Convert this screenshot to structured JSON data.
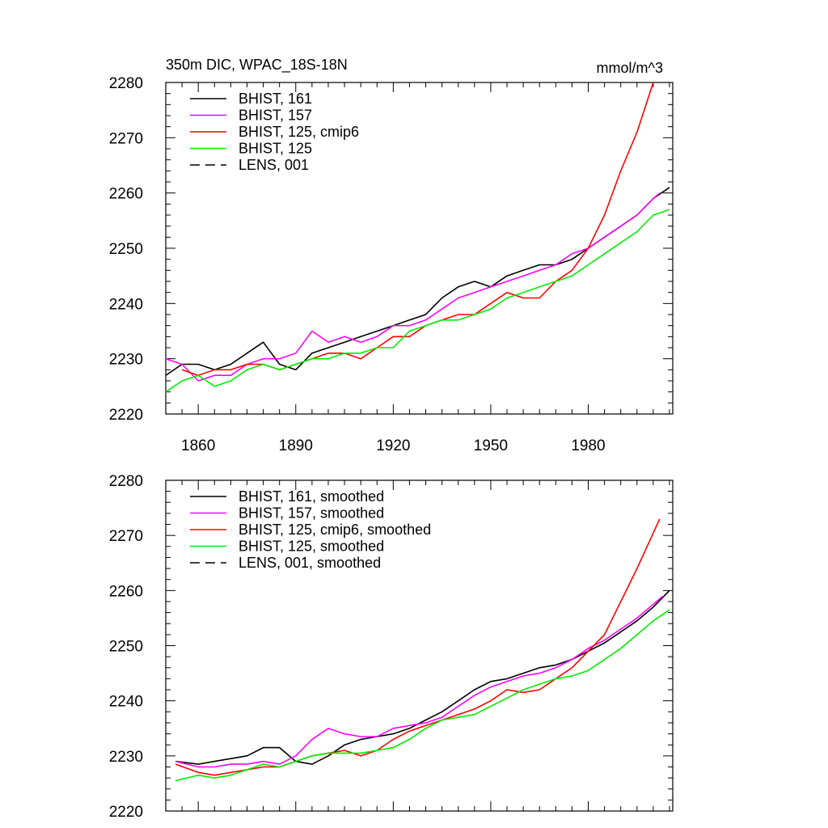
{
  "chart_data": [
    {
      "type": "line",
      "title": "350m DIC, WPAC_18S-18N",
      "units": "mmol/m^3",
      "xlim": [
        1850,
        2006
      ],
      "ylim": [
        2220,
        2280
      ],
      "xticks": [
        1860,
        1890,
        1920,
        1950,
        1980
      ],
      "yticks": [
        2220,
        2230,
        2240,
        2250,
        2260,
        2270,
        2280
      ],
      "show_xtick_labels": true,
      "grid": false,
      "legend_position": "top-left",
      "legend": [
        {
          "label": "BHIST, 161",
          "color": "#000000",
          "dash": "solid"
        },
        {
          "label": "BHIST, 157",
          "color": "#ff00ff",
          "dash": "solid"
        },
        {
          "label": "BHIST, 125, cmip6",
          "color": "#ff0000",
          "dash": "solid"
        },
        {
          "label": "BHIST, 125",
          "color": "#00ee00",
          "dash": "solid"
        },
        {
          "label": "LENS, 001",
          "color": "#000000",
          "dash": "dashed"
        }
      ],
      "series": [
        {
          "name": "BHIST, 161",
          "color": "#000000",
          "x": [
            1850,
            1855,
            1860,
            1865,
            1870,
            1875,
            1880,
            1885,
            1890,
            1895,
            1900,
            1905,
            1910,
            1915,
            1920,
            1925,
            1930,
            1935,
            1940,
            1945,
            1950,
            1955,
            1960,
            1965,
            1970,
            1975,
            1980,
            1985,
            1990,
            1995,
            2000,
            2005
          ],
          "y": [
            2227,
            2229,
            2229,
            2228,
            2229,
            2231,
            2233,
            2229,
            2228,
            2231,
            2232,
            2233,
            2234,
            2235,
            2236,
            2237,
            2238,
            2241,
            2243,
            2244,
            2243,
            2245,
            2246,
            2247,
            2247,
            2248,
            2250,
            2252,
            2254,
            2256,
            2259,
            2261
          ]
        },
        {
          "name": "BHIST, 157",
          "color": "#ff00ff",
          "x": [
            1850,
            1855,
            1860,
            1865,
            1870,
            1875,
            1880,
            1885,
            1890,
            1895,
            1900,
            1905,
            1910,
            1915,
            1920,
            1925,
            1930,
            1935,
            1940,
            1945,
            1950,
            1955,
            1960,
            1965,
            1970,
            1975,
            1980,
            1985,
            1990,
            1995,
            2000,
            2002
          ],
          "y": [
            2230,
            2229,
            2226,
            2227,
            2227,
            2229,
            2230,
            2230,
            2231,
            2235,
            2233,
            2234,
            2233,
            2234,
            2236,
            2236,
            2237,
            2239,
            2241,
            2242,
            2243,
            2244,
            2245,
            2246,
            2247,
            2249,
            2250,
            2252,
            2254,
            2256,
            2259,
            2260
          ]
        },
        {
          "name": "BHIST, 125, cmip6",
          "color": "#ff0000",
          "x": [
            1855,
            1860,
            1865,
            1870,
            1875,
            1880,
            1885,
            1890,
            1895,
            1900,
            1905,
            1910,
            1915,
            1920,
            1925,
            1930,
            1935,
            1940,
            1945,
            1950,
            1955,
            1960,
            1965,
            1970,
            1975,
            1980,
            1985,
            1990,
            1995,
            2000
          ],
          "y": [
            2228,
            2227,
            2228,
            2228,
            2229,
            2229,
            2228,
            2229,
            2230,
            2231,
            2231,
            2230,
            2232,
            2234,
            2234,
            2236,
            2237,
            2238,
            2238,
            2240,
            2242,
            2241,
            2241,
            2244,
            2246,
            2250,
            2256,
            2264,
            2271,
            2280
          ]
        },
        {
          "name": "BHIST, 125",
          "color": "#00ee00",
          "x": [
            1850,
            1855,
            1860,
            1865,
            1870,
            1875,
            1880,
            1885,
            1890,
            1895,
            1900,
            1905,
            1910,
            1915,
            1920,
            1925,
            1930,
            1935,
            1940,
            1945,
            1950,
            1955,
            1960,
            1965,
            1970,
            1975,
            1980,
            1985,
            1990,
            1995,
            2000,
            2005
          ],
          "y": [
            2224,
            2226,
            2227,
            2225,
            2226,
            2228,
            2229,
            2228,
            2229,
            2230,
            2230,
            2231,
            2231,
            2232,
            2232,
            2235,
            2236,
            2237,
            2237,
            2238,
            2239,
            2241,
            2242,
            2243,
            2244,
            2245,
            2247,
            2249,
            2251,
            2253,
            2256,
            2257
          ]
        }
      ]
    },
    {
      "type": "line",
      "title": "",
      "units": "",
      "xlim": [
        1850,
        2006
      ],
      "ylim": [
        2220,
        2280
      ],
      "xticks": [
        1860,
        1890,
        1920,
        1950,
        1980
      ],
      "yticks": [
        2220,
        2230,
        2240,
        2250,
        2260,
        2270,
        2280
      ],
      "show_xtick_labels": false,
      "grid": false,
      "legend_position": "top-left",
      "legend": [
        {
          "label": "BHIST, 161, smoothed",
          "color": "#000000",
          "dash": "solid"
        },
        {
          "label": "BHIST, 157, smoothed",
          "color": "#ff00ff",
          "dash": "solid"
        },
        {
          "label": "BHIST, 125, cmip6, smoothed",
          "color": "#ff0000",
          "dash": "solid"
        },
        {
          "label": "BHIST, 125, smoothed",
          "color": "#00ee00",
          "dash": "solid"
        },
        {
          "label": "LENS, 001, smoothed",
          "color": "#000000",
          "dash": "dashed"
        }
      ],
      "series": [
        {
          "name": "BHIST, 161, smoothed",
          "color": "#000000",
          "x": [
            1853,
            1860,
            1865,
            1870,
            1875,
            1880,
            1885,
            1890,
            1895,
            1900,
            1905,
            1910,
            1915,
            1920,
            1925,
            1930,
            1935,
            1940,
            1945,
            1950,
            1955,
            1960,
            1965,
            1970,
            1975,
            1980,
            1985,
            1990,
            1995,
            2000,
            2005
          ],
          "y": [
            2229,
            2228.5,
            2229,
            2229.5,
            2230,
            2231.5,
            2231.5,
            2229,
            2228.5,
            2230,
            2232,
            2233,
            2233.5,
            2234,
            2235,
            2236.5,
            2238,
            2240,
            2242,
            2243.5,
            2244,
            2245,
            2246,
            2246.5,
            2247.5,
            2249,
            2250.5,
            2252.5,
            2254.5,
            2257,
            2260
          ]
        },
        {
          "name": "BHIST, 157, smoothed",
          "color": "#ff00ff",
          "x": [
            1853,
            1860,
            1865,
            1870,
            1875,
            1880,
            1885,
            1890,
            1895,
            1900,
            1905,
            1910,
            1915,
            1920,
            1925,
            1930,
            1935,
            1940,
            1945,
            1950,
            1955,
            1960,
            1965,
            1970,
            1975,
            1980,
            1985,
            1990,
            1995,
            2000,
            2003
          ],
          "y": [
            2229,
            2228,
            2228,
            2228.5,
            2228.5,
            2229,
            2228.5,
            2230,
            2233,
            2235,
            2234,
            2233.5,
            2233.5,
            2235,
            2235.5,
            2236,
            2237,
            2239,
            2241,
            2242.5,
            2243.5,
            2244.5,
            2245,
            2246,
            2247.5,
            2249.5,
            2251,
            2253,
            2255,
            2257.5,
            2259
          ]
        },
        {
          "name": "BHIST, 125, cmip6, smoothed",
          "color": "#ff0000",
          "x": [
            1853,
            1860,
            1865,
            1870,
            1875,
            1880,
            1885,
            1890,
            1895,
            1900,
            1905,
            1910,
            1915,
            1920,
            1925,
            1930,
            1935,
            1940,
            1945,
            1950,
            1955,
            1960,
            1965,
            1970,
            1975,
            1980,
            1985,
            1990,
            1995,
            2002
          ],
          "y": [
            2228.5,
            2227,
            2226.5,
            2227,
            2227.5,
            2228,
            2228,
            2229,
            2230,
            2230.5,
            2231,
            2230,
            2231,
            2233,
            2234.5,
            2235.5,
            2236.5,
            2237.5,
            2238.5,
            2240,
            2242,
            2241.5,
            2242,
            2244,
            2246,
            2249,
            2252,
            2258,
            2264,
            2273
          ]
        },
        {
          "name": "BHIST, 125, smoothed",
          "color": "#00ee00",
          "x": [
            1853,
            1860,
            1865,
            1870,
            1875,
            1880,
            1885,
            1890,
            1895,
            1900,
            1905,
            1910,
            1915,
            1920,
            1925,
            1930,
            1935,
            1940,
            1945,
            1950,
            1955,
            1960,
            1965,
            1970,
            1975,
            1980,
            1985,
            1990,
            1995,
            2000,
            2005
          ],
          "y": [
            2225.5,
            2226.5,
            2226,
            2226.5,
            2227.5,
            2228.5,
            2228,
            2229,
            2230,
            2230.5,
            2230.5,
            2230.5,
            2231,
            2231.5,
            2233,
            2235,
            2236.5,
            2237,
            2237.5,
            2239,
            2240.5,
            2242,
            2243,
            2244,
            2244.5,
            2245.5,
            2247.5,
            2249.5,
            2252,
            2254.5,
            2256.5
          ]
        }
      ]
    }
  ]
}
